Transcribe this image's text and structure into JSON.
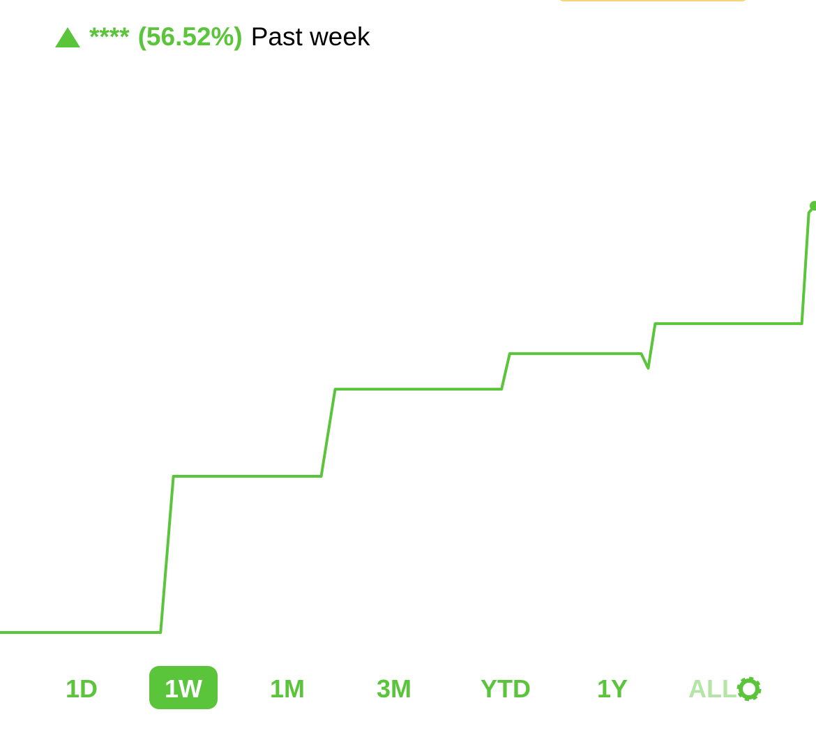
{
  "header": {
    "amount": "****",
    "change": "(56.52%)",
    "period": "Past week"
  },
  "chart_data": {
    "type": "line",
    "color": "#5ac53b",
    "x": [
      0,
      1.38,
      1.49,
      2.76,
      2.88,
      4.31,
      4.38,
      5.51,
      5.57,
      5.63,
      6.89,
      6.95,
      7
    ],
    "values": [
      0,
      0,
      20.69,
      20.69,
      32.23,
      32.23,
      36.94,
      36.94,
      35.0,
      40.91,
      40.91,
      55.6,
      56.52
    ],
    "xlim": [
      0,
      7
    ],
    "ylim": [
      -3,
      75
    ]
  },
  "ranges": {
    "options": [
      "1D",
      "1W",
      "1M",
      "3M",
      "YTD",
      "1Y",
      "ALL"
    ],
    "selected": 1
  }
}
